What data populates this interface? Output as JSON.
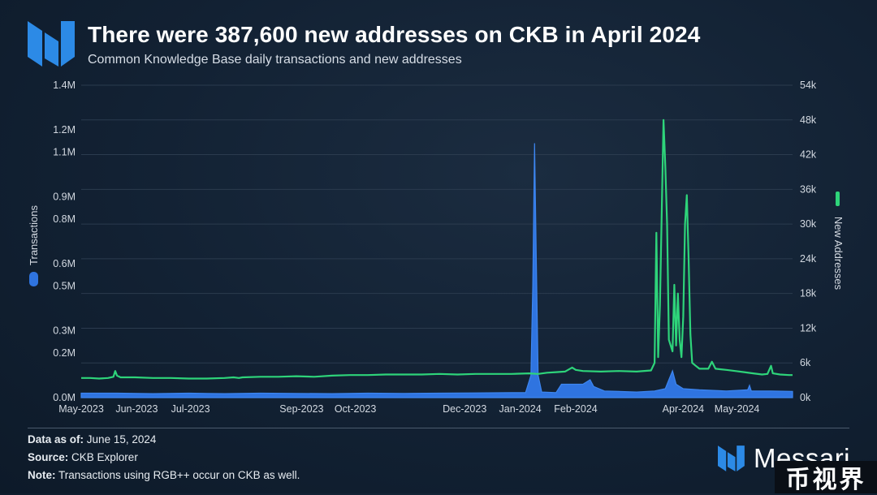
{
  "header": {
    "logo_icon": "messari-logo-icon",
    "title": "There were 387,600 new addresses on CKB in April 2024",
    "subtitle": "Common Knowledge Base daily transactions and new addresses"
  },
  "colors": {
    "transactions": "#2f74e0",
    "new_addresses": "#2ed47a",
    "accent": "#3b82f6"
  },
  "chart_data": {
    "type": "line",
    "x_labels": [
      "May-2023",
      "Jun-2023",
      "Jul-2023",
      "Sep-2023",
      "Oct-2023",
      "Dec-2023",
      "Jan-2024",
      "Feb-2024",
      "Apr-2024",
      "May-2024"
    ],
    "x_label_days": [
      0,
      31,
      61,
      123,
      153,
      214,
      245,
      276,
      336,
      366
    ],
    "x_range_days": [
      0,
      397
    ],
    "left_axis": {
      "label": "Transactions",
      "ticks": [
        "0.0M",
        "0.1M",
        "0.2M",
        "0.3M",
        "0.4M",
        "0.5M",
        "0.6M",
        "0.7M",
        "0.8M",
        "0.9M",
        "1.0M",
        "1.1M",
        "1.2M",
        "1.3M",
        "1.4M"
      ],
      "tick_labels_shown": [
        "0.0M",
        "0.2M",
        "0.3M",
        "0.5M",
        "0.6M",
        "0.8M",
        "0.9M",
        "1.1M",
        "1.2M",
        "1.4M"
      ],
      "tick_values_shown": [
        0,
        0.2,
        0.3,
        0.5,
        0.6,
        0.8,
        0.9,
        1.1,
        1.2,
        1.4
      ],
      "range": [
        0,
        1.4
      ]
    },
    "right_axis": {
      "label": "New Addresses",
      "ticks": [
        "0k",
        "6k",
        "12k",
        "18k",
        "24k",
        "30k",
        "36k",
        "42k",
        "48k",
        "54k"
      ],
      "tick_values": [
        0,
        6,
        12,
        18,
        24,
        30,
        36,
        42,
        48,
        54
      ],
      "range": [
        0,
        54
      ]
    },
    "grid": true,
    "series": [
      {
        "name": "Transactions",
        "axis": "left",
        "style": "area",
        "points": [
          [
            0,
            0.02
          ],
          [
            20,
            0.02
          ],
          [
            40,
            0.018
          ],
          [
            60,
            0.02
          ],
          [
            80,
            0.018
          ],
          [
            100,
            0.02
          ],
          [
            120,
            0.019
          ],
          [
            140,
            0.018
          ],
          [
            160,
            0.02
          ],
          [
            180,
            0.019
          ],
          [
            200,
            0.02
          ],
          [
            220,
            0.021
          ],
          [
            240,
            0.022
          ],
          [
            248,
            0.022
          ],
          [
            251,
            0.1
          ],
          [
            252,
            0.5
          ],
          [
            253,
            1.14
          ],
          [
            254,
            0.6
          ],
          [
            255,
            0.1
          ],
          [
            257,
            0.025
          ],
          [
            265,
            0.022
          ],
          [
            268,
            0.06
          ],
          [
            280,
            0.06
          ],
          [
            284,
            0.08
          ],
          [
            286,
            0.05
          ],
          [
            292,
            0.03
          ],
          [
            310,
            0.025
          ],
          [
            320,
            0.03
          ],
          [
            326,
            0.04
          ],
          [
            328,
            0.08
          ],
          [
            330,
            0.12
          ],
          [
            332,
            0.06
          ],
          [
            336,
            0.04
          ],
          [
            345,
            0.035
          ],
          [
            360,
            0.03
          ],
          [
            372,
            0.035
          ],
          [
            373,
            0.055
          ],
          [
            374,
            0.03
          ],
          [
            385,
            0.03
          ],
          [
            397,
            0.028
          ]
        ]
      },
      {
        "name": "New Addresses",
        "axis": "right",
        "style": "line",
        "points": [
          [
            0,
            3.4
          ],
          [
            5,
            3.4
          ],
          [
            10,
            3.3
          ],
          [
            15,
            3.4
          ],
          [
            18,
            3.6
          ],
          [
            19,
            4.6
          ],
          [
            20,
            3.8
          ],
          [
            22,
            3.5
          ],
          [
            30,
            3.5
          ],
          [
            40,
            3.4
          ],
          [
            50,
            3.4
          ],
          [
            60,
            3.3
          ],
          [
            70,
            3.3
          ],
          [
            80,
            3.4
          ],
          [
            85,
            3.5
          ],
          [
            88,
            3.4
          ],
          [
            90,
            3.5
          ],
          [
            100,
            3.6
          ],
          [
            110,
            3.6
          ],
          [
            120,
            3.7
          ],
          [
            130,
            3.6
          ],
          [
            140,
            3.8
          ],
          [
            150,
            3.9
          ],
          [
            160,
            3.9
          ],
          [
            170,
            4.0
          ],
          [
            180,
            4.0
          ],
          [
            190,
            4.0
          ],
          [
            200,
            4.1
          ],
          [
            210,
            4.0
          ],
          [
            220,
            4.1
          ],
          [
            230,
            4.1
          ],
          [
            240,
            4.1
          ],
          [
            250,
            4.2
          ],
          [
            255,
            4.1
          ],
          [
            260,
            4.3
          ],
          [
            265,
            4.4
          ],
          [
            270,
            4.5
          ],
          [
            274,
            5.2
          ],
          [
            276,
            4.8
          ],
          [
            280,
            4.6
          ],
          [
            290,
            4.5
          ],
          [
            300,
            4.6
          ],
          [
            310,
            4.5
          ],
          [
            318,
            4.7
          ],
          [
            320,
            6.0
          ],
          [
            321,
            28.5
          ],
          [
            322,
            7.0
          ],
          [
            323,
            16.0
          ],
          [
            325,
            48.0
          ],
          [
            326,
            40.0
          ],
          [
            327,
            30.0
          ],
          [
            328,
            10.0
          ],
          [
            330,
            8.0
          ],
          [
            331,
            19.5
          ],
          [
            332,
            9.0
          ],
          [
            333,
            18.0
          ],
          [
            334,
            10.0
          ],
          [
            335,
            7.0
          ],
          [
            336,
            14.0
          ],
          [
            337,
            30.0
          ],
          [
            338,
            35.0
          ],
          [
            339,
            24.0
          ],
          [
            340,
            11.0
          ],
          [
            341,
            6.0
          ],
          [
            343,
            5.5
          ],
          [
            345,
            5.0
          ],
          [
            350,
            5.0
          ],
          [
            352,
            6.2
          ],
          [
            354,
            5.0
          ],
          [
            360,
            4.8
          ],
          [
            365,
            4.6
          ],
          [
            370,
            4.4
          ],
          [
            375,
            4.2
          ],
          [
            380,
            4.0
          ],
          [
            383,
            4.1
          ],
          [
            385,
            5.5
          ],
          [
            386,
            4.2
          ],
          [
            390,
            4.0
          ],
          [
            395,
            3.9
          ],
          [
            397,
            3.9
          ]
        ]
      }
    ]
  },
  "footer": {
    "data_as_of_label": "Data as of:",
    "data_as_of_value": "June 15, 2024",
    "source_label": "Source:",
    "source_value": "CKB Explorer",
    "note_label": "Note:",
    "note_value": "Transactions using RGB++ occur on CKB as well.",
    "brand_icon": "messari-logo-icon",
    "brand_name": "Messari",
    "watermark": "币视界"
  }
}
